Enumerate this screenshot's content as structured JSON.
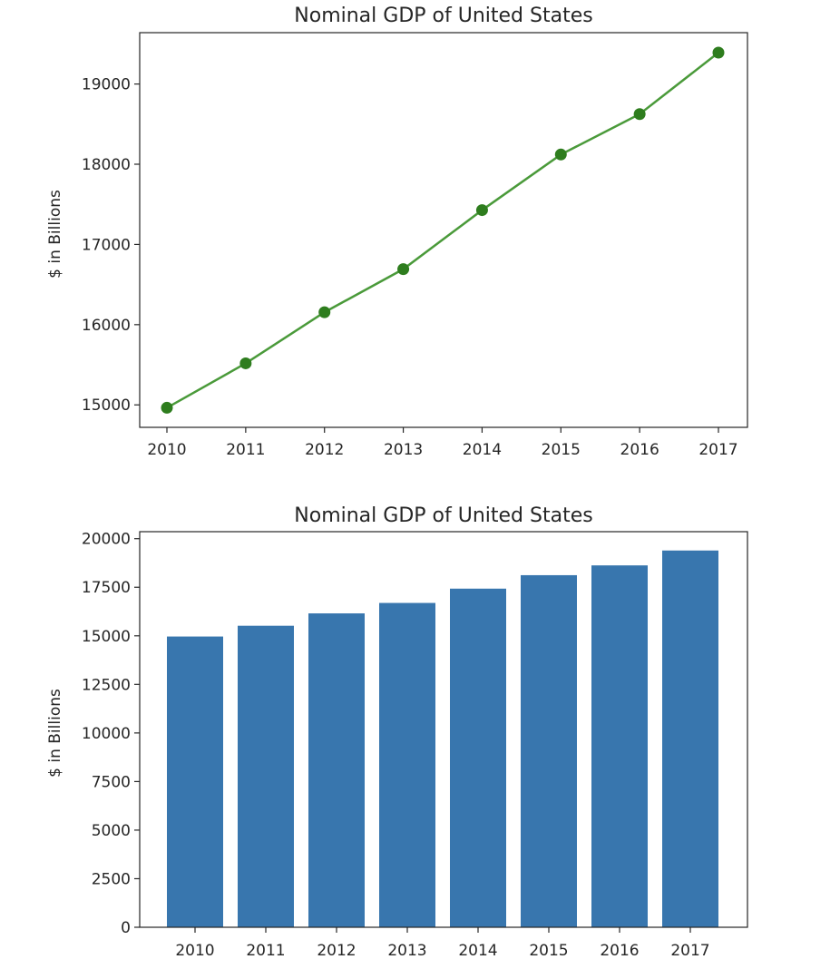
{
  "chart_data": [
    {
      "type": "line",
      "title": "Nominal GDP of United States",
      "xlabel": "",
      "ylabel": "$ in Billions",
      "categories": [
        "2010",
        "2011",
        "2012",
        "2013",
        "2014",
        "2015",
        "2016",
        "2017"
      ],
      "values": [
        14964,
        15518,
        16155,
        16692,
        17428,
        18121,
        18625,
        19391
      ],
      "yticks": [
        15000,
        16000,
        17000,
        18000,
        19000
      ],
      "ylim": [
        14720,
        19640
      ],
      "color": "#2e7d1e",
      "marker": "circle",
      "grid": false
    },
    {
      "type": "bar",
      "title": "Nominal GDP of United States",
      "xlabel": "",
      "ylabel": "$ in Billions",
      "categories": [
        "2010",
        "2011",
        "2012",
        "2013",
        "2014",
        "2015",
        "2016",
        "2017"
      ],
      "values": [
        14964,
        15518,
        16155,
        16692,
        17428,
        18121,
        18625,
        19391
      ],
      "yticks": [
        0,
        2500,
        5000,
        7500,
        10000,
        12500,
        15000,
        17500,
        20000
      ],
      "ylim": [
        0,
        20360
      ],
      "color": "#3876ae",
      "grid": false
    }
  ]
}
